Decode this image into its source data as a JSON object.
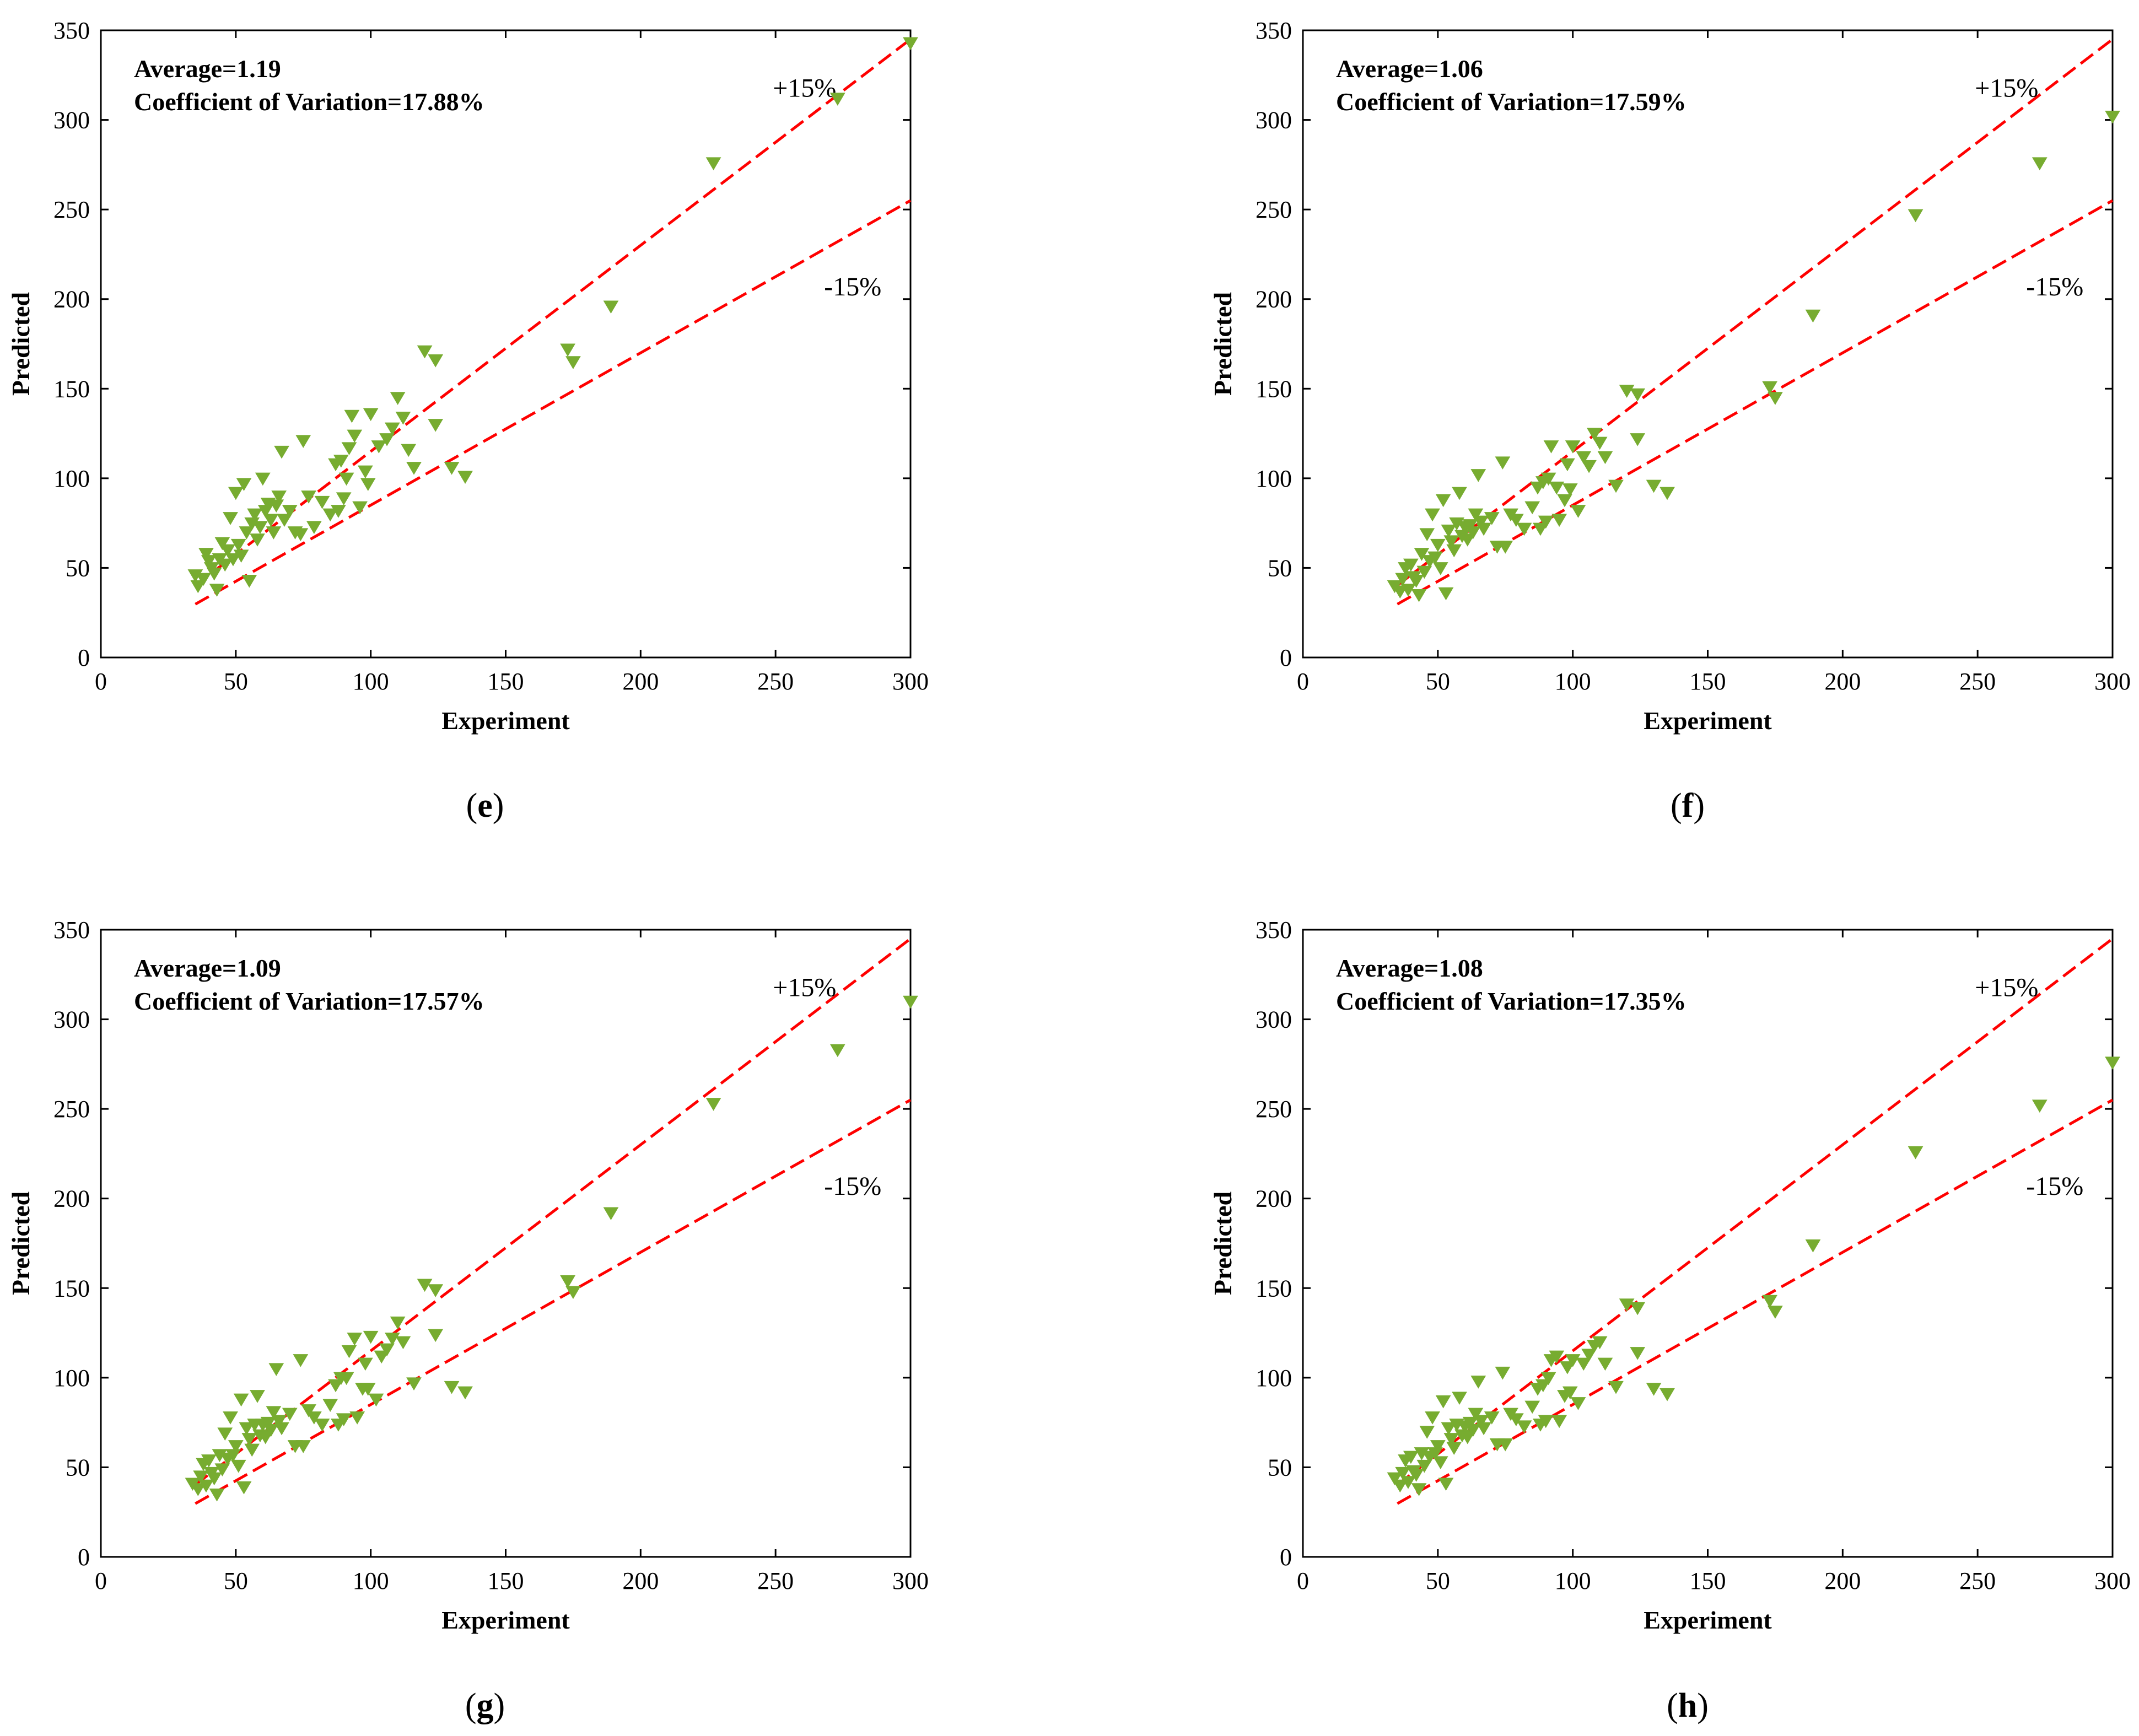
{
  "colors": {
    "marker": "#77AC30",
    "guide_line": "#FF0000",
    "axes": "#000000",
    "background": "#FFFFFF"
  },
  "chart_data": [
    {
      "type": "scatter",
      "panel_label": "e",
      "xlabel": "Experiment",
      "ylabel": "Predicted",
      "xlim": [
        0,
        300
      ],
      "ylim": [
        0,
        350
      ],
      "xticks": [
        0,
        50,
        100,
        150,
        200,
        250,
        300
      ],
      "yticks": [
        0,
        50,
        100,
        150,
        200,
        250,
        300,
        350
      ],
      "annotation_lines": [
        "Average=1.19",
        "Coefficient of Variation=17.88%"
      ],
      "bands": [
        {
          "name": "+15%",
          "label": "+15%",
          "factor": 1.15,
          "style": "dashed",
          "x_range": [
            35,
            300
          ],
          "label_at": [
            249,
            313
          ]
        },
        {
          "name": "-15%",
          "label": "-15%",
          "factor": 0.85,
          "style": "dashed",
          "x_range": [
            35,
            300
          ],
          "label_at": [
            268,
            202
          ]
        }
      ],
      "marker": "triangle-down",
      "points": [
        [
          35,
          46
        ],
        [
          36,
          40
        ],
        [
          38,
          44
        ],
        [
          39,
          58
        ],
        [
          40,
          54
        ],
        [
          41,
          50
        ],
        [
          42,
          47
        ],
        [
          43,
          38
        ],
        [
          44,
          55
        ],
        [
          45,
          64
        ],
        [
          46,
          52
        ],
        [
          47,
          60
        ],
        [
          48,
          78
        ],
        [
          49,
          55
        ],
        [
          50,
          92
        ],
        [
          51,
          63
        ],
        [
          52,
          57
        ],
        [
          53,
          97
        ],
        [
          54,
          70
        ],
        [
          55,
          43
        ],
        [
          56,
          75
        ],
        [
          57,
          80
        ],
        [
          58,
          66
        ],
        [
          59,
          73
        ],
        [
          60,
          100
        ],
        [
          61,
          82
        ],
        [
          62,
          86
        ],
        [
          63,
          77
        ],
        [
          64,
          70
        ],
        [
          65,
          85
        ],
        [
          66,
          90
        ],
        [
          67,
          115
        ],
        [
          68,
          77
        ],
        [
          70,
          82
        ],
        [
          72,
          70
        ],
        [
          74,
          69
        ],
        [
          75,
          121
        ],
        [
          77,
          90
        ],
        [
          79,
          73
        ],
        [
          82,
          87
        ],
        [
          85,
          80
        ],
        [
          87,
          108
        ],
        [
          88,
          82
        ],
        [
          89,
          110
        ],
        [
          90,
          89
        ],
        [
          91,
          100
        ],
        [
          92,
          117
        ],
        [
          93,
          135
        ],
        [
          94,
          124
        ],
        [
          96,
          84
        ],
        [
          98,
          104
        ],
        [
          99,
          97
        ],
        [
          100,
          136
        ],
        [
          103,
          118
        ],
        [
          106,
          122
        ],
        [
          108,
          128
        ],
        [
          110,
          145
        ],
        [
          112,
          134
        ],
        [
          114,
          116
        ],
        [
          116,
          106
        ],
        [
          120,
          171
        ],
        [
          124,
          166
        ],
        [
          124,
          130
        ],
        [
          130,
          106
        ],
        [
          135,
          101
        ],
        [
          173,
          172
        ],
        [
          175,
          165
        ],
        [
          189,
          196
        ],
        [
          227,
          276
        ],
        [
          273,
          312
        ],
        [
          300,
          343
        ]
      ]
    },
    {
      "type": "scatter",
      "panel_label": "f",
      "xlabel": "Experiment",
      "ylabel": "Predicted",
      "xlim": [
        0,
        300
      ],
      "ylim": [
        0,
        350
      ],
      "xticks": [
        0,
        50,
        100,
        150,
        200,
        250,
        300
      ],
      "yticks": [
        0,
        50,
        100,
        150,
        200,
        250,
        300,
        350
      ],
      "annotation_lines": [
        "Average=1.06",
        "Coefficient of Variation=17.59%"
      ],
      "bands": [
        {
          "name": "+15%",
          "label": "+15%",
          "factor": 1.15,
          "style": "dashed",
          "x_range": [
            35,
            300
          ],
          "label_at": [
            249,
            313
          ]
        },
        {
          "name": "-15%",
          "label": "-15%",
          "factor": 0.85,
          "style": "dashed",
          "x_range": [
            35,
            300
          ],
          "label_at": [
            268,
            202
          ]
        }
      ],
      "marker": "triangle-down",
      "points": [
        [
          34,
          40
        ],
        [
          36,
          37
        ],
        [
          37,
          44
        ],
        [
          38,
          50
        ],
        [
          39,
          38
        ],
        [
          40,
          52
        ],
        [
          41,
          45
        ],
        [
          42,
          43
        ],
        [
          43,
          35
        ],
        [
          44,
          58
        ],
        [
          45,
          48
        ],
        [
          46,
          69
        ],
        [
          47,
          54
        ],
        [
          48,
          80
        ],
        [
          49,
          56
        ],
        [
          50,
          63
        ],
        [
          51,
          50
        ],
        [
          52,
          88
        ],
        [
          53,
          36
        ],
        [
          54,
          71
        ],
        [
          55,
          65
        ],
        [
          56,
          60
        ],
        [
          57,
          75
        ],
        [
          58,
          92
        ],
        [
          59,
          68
        ],
        [
          60,
          73
        ],
        [
          61,
          66
        ],
        [
          62,
          74
        ],
        [
          63,
          70
        ],
        [
          64,
          80
        ],
        [
          65,
          102
        ],
        [
          66,
          76
        ],
        [
          67,
          72
        ],
        [
          70,
          78
        ],
        [
          72,
          62
        ],
        [
          74,
          109
        ],
        [
          75,
          62
        ],
        [
          77,
          80
        ],
        [
          79,
          77
        ],
        [
          82,
          72
        ],
        [
          85,
          84
        ],
        [
          87,
          95
        ],
        [
          88,
          72
        ],
        [
          89,
          98
        ],
        [
          90,
          76
        ],
        [
          91,
          100
        ],
        [
          92,
          118
        ],
        [
          94,
          95
        ],
        [
          95,
          77
        ],
        [
          97,
          88
        ],
        [
          98,
          108
        ],
        [
          99,
          94
        ],
        [
          100,
          118
        ],
        [
          102,
          82
        ],
        [
          104,
          112
        ],
        [
          106,
          107
        ],
        [
          108,
          125
        ],
        [
          110,
          120
        ],
        [
          112,
          112
        ],
        [
          116,
          96
        ],
        [
          120,
          149
        ],
        [
          124,
          122
        ],
        [
          124,
          147
        ],
        [
          130,
          96
        ],
        [
          135,
          92
        ],
        [
          173,
          151
        ],
        [
          175,
          145
        ],
        [
          189,
          191
        ],
        [
          227,
          247
        ],
        [
          273,
          276
        ],
        [
          300,
          302
        ]
      ]
    },
    {
      "type": "scatter",
      "panel_label": "g",
      "xlabel": "Experiment",
      "ylabel": "Predicted",
      "xlim": [
        0,
        300
      ],
      "ylim": [
        0,
        350
      ],
      "xticks": [
        0,
        50,
        100,
        150,
        200,
        250,
        300
      ],
      "yticks": [
        0,
        50,
        100,
        150,
        200,
        250,
        300,
        350
      ],
      "annotation_lines": [
        "Average=1.09",
        "Coefficient of Variation=17.57%"
      ],
      "bands": [
        {
          "name": "+15%",
          "label": "+15%",
          "factor": 1.15,
          "style": "dashed",
          "x_range": [
            35,
            300
          ],
          "label_at": [
            249,
            313
          ]
        },
        {
          "name": "-15%",
          "label": "-15%",
          "factor": 0.85,
          "style": "dashed",
          "x_range": [
            35,
            300
          ],
          "label_at": [
            268,
            202
          ]
        }
      ],
      "marker": "triangle-down",
      "points": [
        [
          34,
          41
        ],
        [
          36,
          38
        ],
        [
          37,
          45
        ],
        [
          38,
          52
        ],
        [
          39,
          40
        ],
        [
          40,
          54
        ],
        [
          41,
          47
        ],
        [
          42,
          44
        ],
        [
          43,
          35
        ],
        [
          44,
          57
        ],
        [
          45,
          49
        ],
        [
          46,
          69
        ],
        [
          47,
          55
        ],
        [
          48,
          78
        ],
        [
          49,
          57
        ],
        [
          50,
          62
        ],
        [
          51,
          51
        ],
        [
          52,
          88
        ],
        [
          53,
          39
        ],
        [
          54,
          72
        ],
        [
          55,
          66
        ],
        [
          56,
          60
        ],
        [
          57,
          74
        ],
        [
          58,
          90
        ],
        [
          59,
          68
        ],
        [
          60,
          74
        ],
        [
          61,
          67
        ],
        [
          62,
          75
        ],
        [
          63,
          71
        ],
        [
          64,
          81
        ],
        [
          65,
          105
        ],
        [
          66,
          76
        ],
        [
          67,
          72
        ],
        [
          70,
          80
        ],
        [
          72,
          62
        ],
        [
          74,
          110
        ],
        [
          75,
          62
        ],
        [
          77,
          82
        ],
        [
          79,
          78
        ],
        [
          82,
          74
        ],
        [
          85,
          85
        ],
        [
          87,
          96
        ],
        [
          88,
          74
        ],
        [
          89,
          100
        ],
        [
          90,
          77
        ],
        [
          91,
          100
        ],
        [
          92,
          115
        ],
        [
          94,
          122
        ],
        [
          95,
          78
        ],
        [
          97,
          94
        ],
        [
          98,
          108
        ],
        [
          99,
          94
        ],
        [
          100,
          123
        ],
        [
          102,
          88
        ],
        [
          104,
          112
        ],
        [
          106,
          116
        ],
        [
          108,
          122
        ],
        [
          110,
          131
        ],
        [
          112,
          120
        ],
        [
          116,
          97
        ],
        [
          120,
          152
        ],
        [
          124,
          124
        ],
        [
          124,
          149
        ],
        [
          130,
          95
        ],
        [
          135,
          92
        ],
        [
          173,
          154
        ],
        [
          175,
          148
        ],
        [
          189,
          192
        ],
        [
          227,
          253
        ],
        [
          273,
          283
        ],
        [
          300,
          310
        ]
      ]
    },
    {
      "type": "scatter",
      "panel_label": "h",
      "xlabel": "Experiment",
      "ylabel": "Predicted",
      "xlim": [
        0,
        300
      ],
      "ylim": [
        0,
        350
      ],
      "xticks": [
        0,
        50,
        100,
        150,
        200,
        250,
        300
      ],
      "yticks": [
        0,
        50,
        100,
        150,
        200,
        250,
        300,
        350
      ],
      "annotation_lines": [
        "Average=1.08",
        "Coefficient of Variation=17.35%"
      ],
      "bands": [
        {
          "name": "+15%",
          "label": "+15%",
          "factor": 1.15,
          "style": "dashed",
          "x_range": [
            35,
            300
          ],
          "label_at": [
            249,
            313
          ]
        },
        {
          "name": "-15%",
          "label": "-15%",
          "factor": 0.85,
          "style": "dashed",
          "x_range": [
            35,
            300
          ],
          "label_at": [
            268,
            202
          ]
        }
      ],
      "marker": "triangle-down",
      "points": [
        [
          34,
          44
        ],
        [
          36,
          40
        ],
        [
          37,
          47
        ],
        [
          38,
          54
        ],
        [
          39,
          42
        ],
        [
          40,
          56
        ],
        [
          41,
          48
        ],
        [
          42,
          46
        ],
        [
          43,
          38
        ],
        [
          44,
          58
        ],
        [
          45,
          51
        ],
        [
          46,
          70
        ],
        [
          47,
          56
        ],
        [
          48,
          78
        ],
        [
          49,
          58
        ],
        [
          50,
          62
        ],
        [
          51,
          53
        ],
        [
          52,
          87
        ],
        [
          53,
          41
        ],
        [
          54,
          72
        ],
        [
          55,
          66
        ],
        [
          56,
          61
        ],
        [
          57,
          74
        ],
        [
          58,
          89
        ],
        [
          59,
          68
        ],
        [
          60,
          73
        ],
        [
          61,
          67
        ],
        [
          62,
          75
        ],
        [
          63,
          71
        ],
        [
          64,
          80
        ],
        [
          65,
          98
        ],
        [
          66,
          76
        ],
        [
          67,
          72
        ],
        [
          70,
          78
        ],
        [
          72,
          63
        ],
        [
          74,
          103
        ],
        [
          75,
          63
        ],
        [
          77,
          80
        ],
        [
          79,
          77
        ],
        [
          82,
          73
        ],
        [
          85,
          84
        ],
        [
          87,
          94
        ],
        [
          88,
          74
        ],
        [
          89,
          96
        ],
        [
          90,
          76
        ],
        [
          91,
          100
        ],
        [
          92,
          110
        ],
        [
          94,
          112
        ],
        [
          95,
          76
        ],
        [
          97,
          90
        ],
        [
          98,
          106
        ],
        [
          99,
          92
        ],
        [
          100,
          110
        ],
        [
          102,
          86
        ],
        [
          104,
          108
        ],
        [
          106,
          113
        ],
        [
          108,
          118
        ],
        [
          110,
          120
        ],
        [
          112,
          108
        ],
        [
          116,
          95
        ],
        [
          120,
          141
        ],
        [
          124,
          114
        ],
        [
          124,
          139
        ],
        [
          130,
          94
        ],
        [
          135,
          91
        ],
        [
          173,
          143
        ],
        [
          175,
          137
        ],
        [
          189,
          174
        ],
        [
          227,
          226
        ],
        [
          273,
          252
        ],
        [
          300,
          276
        ]
      ]
    }
  ]
}
